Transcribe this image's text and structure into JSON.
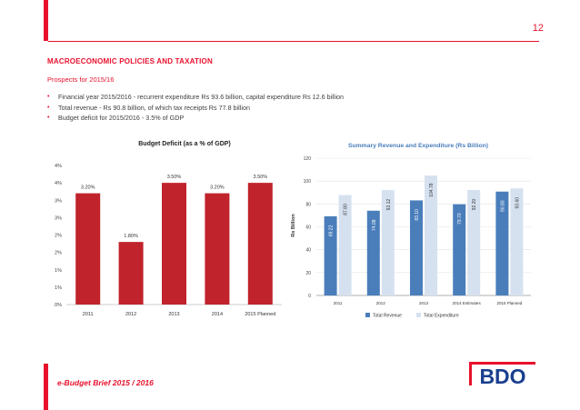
{
  "page": {
    "number": "12",
    "section_title": "MACROECONOMIC POLICIES AND TAXATION",
    "subtitle": "Prospects for 2015/16",
    "bullets": [
      "Financial year 2015/2016 - recurrent expenditure Rs 93.6 billion, capital expenditure Rs 12.6 billion",
      "Total revenue - Rs 90.8 billion, of which tax receipts Rs 77.8 billion",
      "Budget deficit for 2015/2016 - 3.5% of GDP"
    ],
    "footer": "e-Budget Brief 2015 / 2016",
    "logo": "BDO",
    "colors": {
      "accent": "#e8112d",
      "logo_blue": "#1a3f8f"
    }
  },
  "chart_data": [
    {
      "type": "bar",
      "title": "Budget Deficit (as a % of GDP)",
      "categories": [
        "2011",
        "2012",
        "2013",
        "2014",
        "2015 Planned"
      ],
      "values": [
        3.2,
        1.8,
        3.5,
        3.2,
        3.5
      ],
      "data_labels": [
        "3.20%",
        "1.80%",
        "3.50%",
        "3.20%",
        "3.50%"
      ],
      "ytick_labels": [
        "0%",
        "1%",
        "1%",
        "2%",
        "2%",
        "3%",
        "3%",
        "4%",
        "4%"
      ],
      "ylim": [
        0,
        4
      ],
      "grid": false,
      "colors": {
        "bar": "#c0232b"
      }
    },
    {
      "type": "bar",
      "title": "Summary Revenue and Expenditure (Rs Billion)",
      "ylabel": "Rs Billion",
      "categories": [
        "2011",
        "2012",
        "2013",
        "2014 Estimates",
        "2015 Planned"
      ],
      "series": [
        {
          "name": "Total Revenue",
          "values": [
            69.22,
            74.08,
            83.1,
            79.7,
            90.8
          ],
          "labels": [
            "69.22",
            "74.08",
            "83.10",
            "79.70",
            "90.80"
          ],
          "color": "#4a7ebb"
        },
        {
          "name": "Total Expenditure",
          "values": [
            87.8,
            92.12,
            104.78,
            92.2,
            93.6
          ],
          "labels": [
            "87.80",
            "92.12",
            "104.78",
            "92.20",
            "93.60"
          ],
          "color": "#d6e1f0"
        }
      ],
      "ytick_labels": [
        "0",
        "20",
        "40",
        "60",
        "80",
        "100",
        "120"
      ],
      "ylim": [
        0,
        120
      ],
      "grid": true,
      "legend": "bottom"
    }
  ]
}
